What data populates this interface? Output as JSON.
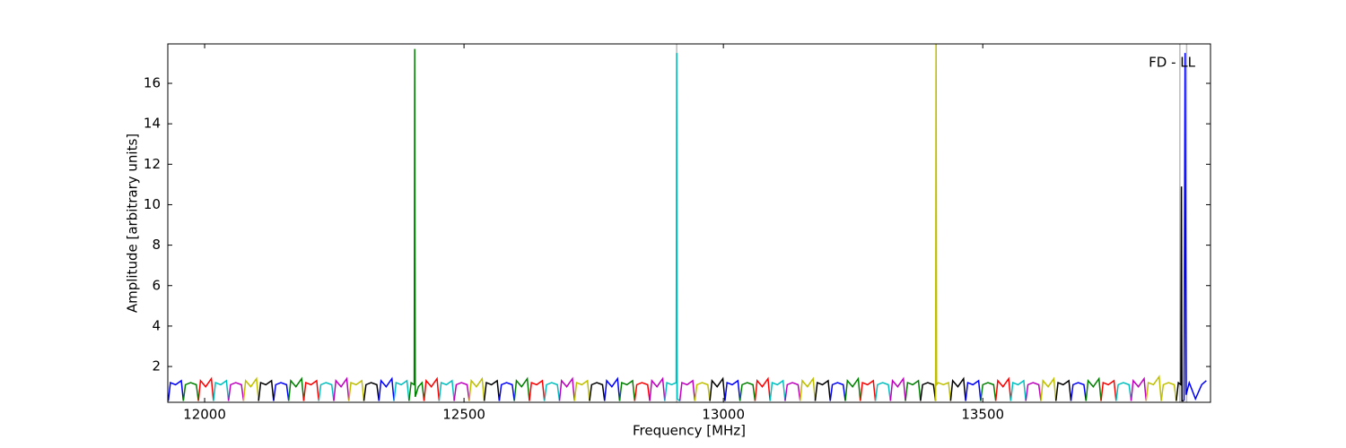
{
  "chart_data": {
    "type": "line",
    "xlabel": "Frequency [MHz]",
    "ylabel": "Amplitude [arbitrary units]",
    "annotation": "FD - LL",
    "xlim": [
      11929,
      13939
    ],
    "ylim": [
      0.23,
      17.95
    ],
    "xticks": [
      12000,
      12500,
      13000,
      13500
    ],
    "yticks": [
      2,
      4,
      6,
      8,
      10,
      12,
      14,
      16
    ],
    "vlines": {
      "x": [
        12910,
        13880,
        13893
      ],
      "color": "#bbbbbb"
    },
    "series": [
      {
        "color": "#0000ff",
        "x": [
          11930,
          11934,
          11944,
          11955,
          11959
        ],
        "values": [
          0.3,
          1.2,
          1.1,
          1.3,
          0.3
        ]
      },
      {
        "color": "#008000",
        "x": [
          11959,
          11963,
          11973,
          11984,
          11988
        ],
        "values": [
          0.3,
          1.1,
          1.2,
          1.1,
          0.3
        ]
      },
      {
        "color": "#ff0000",
        "x": [
          11988,
          11992,
          12002,
          12013,
          12017
        ],
        "values": [
          0.3,
          1.3,
          1.0,
          1.4,
          0.3
        ]
      },
      {
        "color": "#00bfbf",
        "x": [
          12017,
          12021,
          12031,
          12042,
          12046
        ],
        "values": [
          0.3,
          1.2,
          1.1,
          1.3,
          0.3
        ]
      },
      {
        "color": "#bf00bf",
        "x": [
          12046,
          12050,
          12060,
          12071,
          12075
        ],
        "values": [
          0.3,
          1.1,
          1.2,
          1.1,
          0.3
        ]
      },
      {
        "color": "#bfbf00",
        "x": [
          12075,
          12079,
          12089,
          12100,
          12104
        ],
        "values": [
          0.3,
          1.3,
          1.0,
          1.4,
          0.3
        ]
      },
      {
        "color": "#000000",
        "x": [
          12104,
          12108,
          12118,
          12129,
          12133
        ],
        "values": [
          0.3,
          1.2,
          1.1,
          1.3,
          0.3
        ]
      },
      {
        "color": "#0000ff",
        "x": [
          12133,
          12137,
          12147,
          12158,
          12162
        ],
        "values": [
          0.3,
          1.1,
          1.2,
          1.1,
          0.3
        ]
      },
      {
        "color": "#008000",
        "x": [
          12162,
          12166,
          12176,
          12187,
          12191
        ],
        "values": [
          0.3,
          1.3,
          1.0,
          1.4,
          0.3
        ]
      },
      {
        "color": "#ff0000",
        "x": [
          12191,
          12195,
          12205,
          12216,
          12220
        ],
        "values": [
          0.3,
          1.2,
          1.1,
          1.3,
          0.3
        ]
      },
      {
        "color": "#00bfbf",
        "x": [
          12220,
          12224,
          12234,
          12245,
          12249
        ],
        "values": [
          0.3,
          1.1,
          1.2,
          1.1,
          0.3
        ]
      },
      {
        "color": "#bf00bf",
        "x": [
          12249,
          12253,
          12263,
          12274,
          12278
        ],
        "values": [
          0.3,
          1.3,
          1.0,
          1.4,
          0.3
        ]
      },
      {
        "color": "#bfbf00",
        "x": [
          12278,
          12282,
          12292,
          12303,
          12307
        ],
        "values": [
          0.3,
          1.2,
          1.1,
          1.3,
          0.3
        ]
      },
      {
        "color": "#000000",
        "x": [
          12307,
          12311,
          12321,
          12332,
          12336
        ],
        "values": [
          0.3,
          1.1,
          1.2,
          1.1,
          0.3
        ]
      },
      {
        "color": "#0000ff",
        "x": [
          12336,
          12340,
          12350,
          12361,
          12365
        ],
        "values": [
          0.3,
          1.3,
          1.0,
          1.4,
          0.3
        ]
      },
      {
        "color": "#00bfbf",
        "x": [
          12365,
          12369,
          12379,
          12390,
          12394
        ],
        "values": [
          0.3,
          1.2,
          1.1,
          1.3,
          0.3
        ]
      },
      {
        "color": "#008000",
        "x": [
          12394,
          12398,
          12404,
          12405,
          12406,
          12412,
          12419,
          12423
        ],
        "values": [
          0.3,
          1.2,
          1.1,
          17.7,
          0.5,
          1.0,
          1.2,
          0.3
        ]
      },
      {
        "color": "#ff0000",
        "x": [
          12423,
          12427,
          12437,
          12448,
          12452
        ],
        "values": [
          0.3,
          1.3,
          1.0,
          1.4,
          0.3
        ]
      },
      {
        "color": "#00bfbf",
        "x": [
          12452,
          12456,
          12466,
          12477,
          12481
        ],
        "values": [
          0.3,
          1.2,
          1.1,
          1.3,
          0.3
        ]
      },
      {
        "color": "#bf00bf",
        "x": [
          12481,
          12485,
          12495,
          12506,
          12510
        ],
        "values": [
          0.3,
          1.1,
          1.2,
          1.1,
          0.3
        ]
      },
      {
        "color": "#bfbf00",
        "x": [
          12510,
          12514,
          12524,
          12535,
          12539
        ],
        "values": [
          0.3,
          1.3,
          1.0,
          1.4,
          0.3
        ]
      },
      {
        "color": "#000000",
        "x": [
          12539,
          12543,
          12553,
          12564,
          12568
        ],
        "values": [
          0.3,
          1.2,
          1.1,
          1.3,
          0.3
        ]
      },
      {
        "color": "#0000ff",
        "x": [
          12568,
          12572,
          12582,
          12593,
          12597
        ],
        "values": [
          0.3,
          1.1,
          1.2,
          1.1,
          0.3
        ]
      },
      {
        "color": "#008000",
        "x": [
          12597,
          12601,
          12611,
          12622,
          12626
        ],
        "values": [
          0.3,
          1.3,
          1.0,
          1.4,
          0.3
        ]
      },
      {
        "color": "#ff0000",
        "x": [
          12626,
          12630,
          12640,
          12651,
          12655
        ],
        "values": [
          0.3,
          1.2,
          1.1,
          1.3,
          0.3
        ]
      },
      {
        "color": "#00bfbf",
        "x": [
          12655,
          12659,
          12669,
          12680,
          12684
        ],
        "values": [
          0.3,
          1.1,
          1.2,
          1.1,
          0.3
        ]
      },
      {
        "color": "#bf00bf",
        "x": [
          12684,
          12688,
          12698,
          12709,
          12713
        ],
        "values": [
          0.3,
          1.3,
          1.0,
          1.4,
          0.3
        ]
      },
      {
        "color": "#bfbf00",
        "x": [
          12713,
          12717,
          12727,
          12738,
          12742
        ],
        "values": [
          0.3,
          1.2,
          1.1,
          1.3,
          0.3
        ]
      },
      {
        "color": "#000000",
        "x": [
          12742,
          12746,
          12756,
          12767,
          12771
        ],
        "values": [
          0.3,
          1.1,
          1.2,
          1.1,
          0.3
        ]
      },
      {
        "color": "#0000ff",
        "x": [
          12771,
          12775,
          12785,
          12796,
          12800
        ],
        "values": [
          0.3,
          1.3,
          1.0,
          1.4,
          0.3
        ]
      },
      {
        "color": "#008000",
        "x": [
          12800,
          12804,
          12814,
          12825,
          12829
        ],
        "values": [
          0.3,
          1.2,
          1.1,
          1.3,
          0.3
        ]
      },
      {
        "color": "#ff0000",
        "x": [
          12829,
          12833,
          12843,
          12854,
          12858
        ],
        "values": [
          0.3,
          1.1,
          1.2,
          1.1,
          0.3
        ]
      },
      {
        "color": "#bf00bf",
        "x": [
          12858,
          12862,
          12872,
          12883,
          12887
        ],
        "values": [
          0.3,
          1.3,
          1.0,
          1.4,
          0.3
        ]
      },
      {
        "color": "#00bfbf",
        "x": [
          12887,
          12891,
          12900,
          12909,
          12910,
          12911,
          12916
        ],
        "values": [
          0.3,
          1.2,
          1.1,
          1.2,
          17.5,
          0.4,
          0.3
        ]
      },
      {
        "color": "#bf00bf",
        "x": [
          12916,
          12920,
          12930,
          12941,
          12945
        ],
        "values": [
          0.3,
          1.2,
          1.1,
          1.3,
          0.3
        ]
      },
      {
        "color": "#bfbf00",
        "x": [
          12945,
          12949,
          12959,
          12970,
          12974
        ],
        "values": [
          0.3,
          1.1,
          1.2,
          1.1,
          0.3
        ]
      },
      {
        "color": "#000000",
        "x": [
          12974,
          12978,
          12988,
          12999,
          13003
        ],
        "values": [
          0.3,
          1.3,
          1.0,
          1.4,
          0.3
        ]
      },
      {
        "color": "#0000ff",
        "x": [
          13003,
          13007,
          13017,
          13028,
          13032
        ],
        "values": [
          0.3,
          1.2,
          1.1,
          1.3,
          0.3
        ]
      },
      {
        "color": "#008000",
        "x": [
          13032,
          13036,
          13046,
          13057,
          13061
        ],
        "values": [
          0.3,
          1.1,
          1.2,
          1.1,
          0.3
        ]
      },
      {
        "color": "#ff0000",
        "x": [
          13061,
          13065,
          13075,
          13086,
          13090
        ],
        "values": [
          0.3,
          1.3,
          1.0,
          1.4,
          0.3
        ]
      },
      {
        "color": "#00bfbf",
        "x": [
          13090,
          13094,
          13104,
          13115,
          13119
        ],
        "values": [
          0.3,
          1.2,
          1.1,
          1.3,
          0.3
        ]
      },
      {
        "color": "#bf00bf",
        "x": [
          13119,
          13123,
          13133,
          13144,
          13148
        ],
        "values": [
          0.3,
          1.1,
          1.2,
          1.1,
          0.3
        ]
      },
      {
        "color": "#bfbf00",
        "x": [
          13148,
          13152,
          13162,
          13173,
          13177
        ],
        "values": [
          0.3,
          1.3,
          1.0,
          1.4,
          0.3
        ]
      },
      {
        "color": "#000000",
        "x": [
          13177,
          13181,
          13191,
          13202,
          13206
        ],
        "values": [
          0.3,
          1.2,
          1.1,
          1.3,
          0.3
        ]
      },
      {
        "color": "#0000ff",
        "x": [
          13206,
          13210,
          13220,
          13231,
          13235
        ],
        "values": [
          0.3,
          1.1,
          1.2,
          1.1,
          0.3
        ]
      },
      {
        "color": "#008000",
        "x": [
          13235,
          13239,
          13249,
          13260,
          13264
        ],
        "values": [
          0.3,
          1.3,
          1.0,
          1.4,
          0.3
        ]
      },
      {
        "color": "#ff0000",
        "x": [
          13264,
          13268,
          13278,
          13289,
          13293
        ],
        "values": [
          0.3,
          1.2,
          1.1,
          1.3,
          0.3
        ]
      },
      {
        "color": "#00bfbf",
        "x": [
          13293,
          13297,
          13307,
          13318,
          13322
        ],
        "values": [
          0.3,
          1.1,
          1.2,
          1.1,
          0.3
        ]
      },
      {
        "color": "#bf00bf",
        "x": [
          13322,
          13326,
          13336,
          13347,
          13351
        ],
        "values": [
          0.3,
          1.3,
          1.0,
          1.4,
          0.3
        ]
      },
      {
        "color": "#008000",
        "x": [
          13351,
          13355,
          13365,
          13376,
          13380
        ],
        "values": [
          0.3,
          1.2,
          1.1,
          1.3,
          0.3
        ]
      },
      {
        "color": "#000000",
        "x": [
          13380,
          13384,
          13394,
          13405,
          13409
        ],
        "values": [
          0.3,
          1.1,
          1.2,
          1.1,
          0.3
        ]
      },
      {
        "color": "#bfbf00",
        "x": [
          13409,
          13410,
          13411,
          13414,
          13424,
          13434,
          13438
        ],
        "values": [
          0.3,
          18,
          1.1,
          1.2,
          1.1,
          1.2,
          0.3
        ]
      },
      {
        "color": "#000000",
        "x": [
          13438,
          13442,
          13452,
          13463,
          13467
        ],
        "values": [
          0.3,
          1.3,
          1.0,
          1.4,
          0.3
        ]
      },
      {
        "color": "#0000ff",
        "x": [
          13467,
          13471,
          13481,
          13492,
          13496
        ],
        "values": [
          0.3,
          1.2,
          1.1,
          1.3,
          0.3
        ]
      },
      {
        "color": "#008000",
        "x": [
          13496,
          13500,
          13510,
          13521,
          13525
        ],
        "values": [
          0.3,
          1.1,
          1.2,
          1.1,
          0.3
        ]
      },
      {
        "color": "#ff0000",
        "x": [
          13525,
          13529,
          13539,
          13550,
          13554
        ],
        "values": [
          0.3,
          1.3,
          1.0,
          1.4,
          0.3
        ]
      },
      {
        "color": "#00bfbf",
        "x": [
          13554,
          13558,
          13568,
          13579,
          13583
        ],
        "values": [
          0.3,
          1.2,
          1.1,
          1.3,
          0.3
        ]
      },
      {
        "color": "#bf00bf",
        "x": [
          13583,
          13587,
          13597,
          13608,
          13612
        ],
        "values": [
          0.3,
          1.1,
          1.2,
          1.1,
          0.3
        ]
      },
      {
        "color": "#bfbf00",
        "x": [
          13612,
          13616,
          13626,
          13637,
          13641
        ],
        "values": [
          0.3,
          1.3,
          1.0,
          1.4,
          0.3
        ]
      },
      {
        "color": "#000000",
        "x": [
          13641,
          13645,
          13655,
          13666,
          13670
        ],
        "values": [
          0.3,
          1.2,
          1.1,
          1.3,
          0.3
        ]
      },
      {
        "color": "#0000ff",
        "x": [
          13670,
          13674,
          13684,
          13695,
          13699
        ],
        "values": [
          0.3,
          1.1,
          1.2,
          1.1,
          0.3
        ]
      },
      {
        "color": "#008000",
        "x": [
          13699,
          13703,
          13713,
          13724,
          13728
        ],
        "values": [
          0.3,
          1.3,
          1.0,
          1.4,
          0.3
        ]
      },
      {
        "color": "#ff0000",
        "x": [
          13728,
          13732,
          13742,
          13753,
          13757
        ],
        "values": [
          0.3,
          1.2,
          1.1,
          1.3,
          0.3
        ]
      },
      {
        "color": "#00bfbf",
        "x": [
          13757,
          13761,
          13771,
          13782,
          13786
        ],
        "values": [
          0.3,
          1.1,
          1.2,
          1.1,
          0.3
        ]
      },
      {
        "color": "#bf00bf",
        "x": [
          13786,
          13790,
          13800,
          13811,
          13815
        ],
        "values": [
          0.3,
          1.3,
          1.0,
          1.4,
          0.3
        ]
      },
      {
        "color": "#bfbf00",
        "x": [
          13815,
          13819,
          13829,
          13840,
          13844
        ],
        "values": [
          0.3,
          1.2,
          1.1,
          1.5,
          0.3
        ]
      },
      {
        "color": "#bfbf00",
        "x": [
          13844,
          13848,
          13858,
          13869,
          13873
        ],
        "values": [
          0.3,
          1.1,
          1.2,
          1.1,
          0.3
        ]
      },
      {
        "color": "#000000",
        "x": [
          13873,
          13877,
          13882,
          13883,
          13884,
          13887
        ],
        "values": [
          0.3,
          1.2,
          1.1,
          10.9,
          0.3,
          0.3
        ]
      },
      {
        "color": "#0000ff",
        "x": [
          13888,
          13890,
          13892,
          13898,
          13910,
          13922,
          13931
        ],
        "values": [
          0.3,
          17.5,
          0.6,
          1.2,
          0.4,
          1.1,
          1.3
        ]
      }
    ]
  }
}
